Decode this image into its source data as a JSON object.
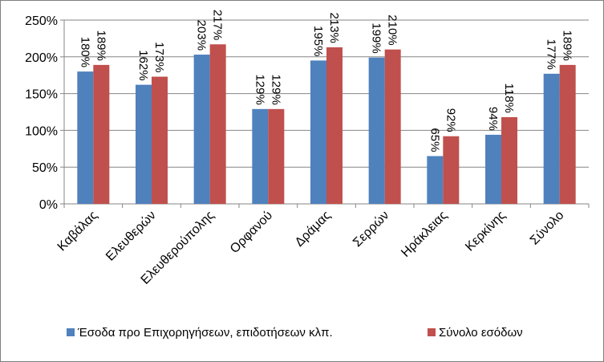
{
  "chart_data": {
    "type": "bar",
    "categories": [
      "Καβάλας",
      "Ελευθερών",
      "Ελευθερούπολης",
      "Ορφανού",
      "Δράμας",
      "Σερρών",
      "Ηράκλειας",
      "Κερκίνης",
      "Σύνολο"
    ],
    "series": [
      {
        "name": "Έσοδα προ Επιχορηγήσεων, επιδοτήσεων κλπ.",
        "values": [
          180,
          162,
          203,
          129,
          195,
          199,
          65,
          94,
          177
        ],
        "labels": [
          "180%",
          "162%",
          "203%",
          "129%",
          "195%",
          "199%",
          "65%",
          "94%",
          "177%"
        ],
        "color": "#4f81bd"
      },
      {
        "name": "Σύνολο εσόδων",
        "values": [
          189,
          173,
          217,
          129,
          213,
          210,
          92,
          118,
          189
        ],
        "labels": [
          "189%",
          "173%",
          "217%",
          "129%",
          "213%",
          "210%",
          "92%",
          "118%",
          "189%"
        ],
        "color": "#c0504d"
      }
    ],
    "yticks": [
      "0%",
      "50%",
      "100%",
      "150%",
      "200%",
      "250%"
    ],
    "ytick_values": [
      0,
      50,
      100,
      150,
      200,
      250
    ],
    "ylim": [
      0,
      250
    ],
    "grid": true,
    "legend": "bottom",
    "title": "",
    "xlabel": "",
    "ylabel": ""
  }
}
